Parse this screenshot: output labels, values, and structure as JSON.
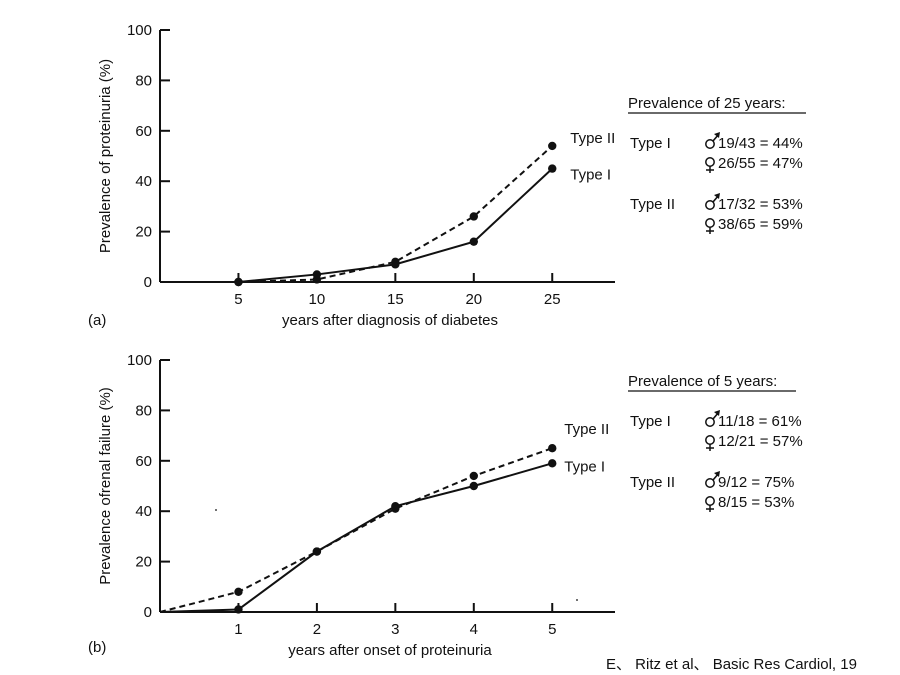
{
  "colors": {
    "slide_background": "#ffffff",
    "panel_background": "#ffffff",
    "ink": "#111111"
  },
  "citation": "E、 Ritz et al、 Basic Res Cardiol, 19",
  "chart_data": [
    {
      "type": "line",
      "panel_label": "(a)",
      "ylabel": "Prevalence of proteinuria (%)",
      "xlabel": "years after diagnosis of diabetes",
      "x_ticks": [
        5,
        10,
        15,
        20,
        25
      ],
      "y_ticks": [
        0,
        20,
        40,
        60,
        80,
        100
      ],
      "xlim": [
        0,
        29
      ],
      "ylim": [
        0,
        100
      ],
      "series": [
        {
          "name": "Type II",
          "style": "dashed",
          "points": [
            [
              0,
              0
            ],
            [
              5,
              0
            ],
            [
              10,
              1
            ],
            [
              15,
              8
            ],
            [
              20,
              26
            ],
            [
              25,
              54
            ]
          ]
        },
        {
          "name": "Type I",
          "style": "solid",
          "points": [
            [
              0,
              0
            ],
            [
              5,
              0
            ],
            [
              10,
              3
            ],
            [
              15,
              7
            ],
            [
              20,
              16
            ],
            [
              25,
              45
            ]
          ]
        }
      ],
      "prevalence": {
        "heading": "Prevalence of 25 years:",
        "groups": [
          {
            "type": "Type I",
            "male": "19/43 = 44%",
            "female": "26/55 = 47%"
          },
          {
            "type": "Type II",
            "male": "17/32 = 53%",
            "female": "38/65 = 59%"
          }
        ]
      }
    },
    {
      "type": "line",
      "panel_label": "(b)",
      "ylabel": "Prevalence ofrenal failure (%)",
      "xlabel": "years after onset of proteinuria",
      "x_ticks": [
        1,
        2,
        3,
        4,
        5
      ],
      "y_ticks": [
        0,
        20,
        40,
        60,
        80,
        100
      ],
      "xlim": [
        0,
        5.8
      ],
      "ylim": [
        0,
        100
      ],
      "series": [
        {
          "name": "Type II",
          "style": "dashed",
          "points": [
            [
              0,
              0
            ],
            [
              1,
              8
            ],
            [
              2,
              24
            ],
            [
              3,
              41
            ],
            [
              4,
              54
            ],
            [
              5,
              65
            ]
          ]
        },
        {
          "name": "Type I",
          "style": "solid",
          "points": [
            [
              0,
              0
            ],
            [
              1,
              1
            ],
            [
              2,
              24
            ],
            [
              3,
              42
            ],
            [
              4,
              50
            ],
            [
              5,
              59
            ]
          ]
        }
      ],
      "prevalence": {
        "heading": "Prevalence of 5 years:",
        "groups": [
          {
            "type": "Type I",
            "male": "11/18 = 61%",
            "female": "12/21 = 57%"
          },
          {
            "type": "Type II",
            "male": "9/12 = 75%",
            "female": "8/15 = 53%"
          }
        ]
      }
    }
  ]
}
